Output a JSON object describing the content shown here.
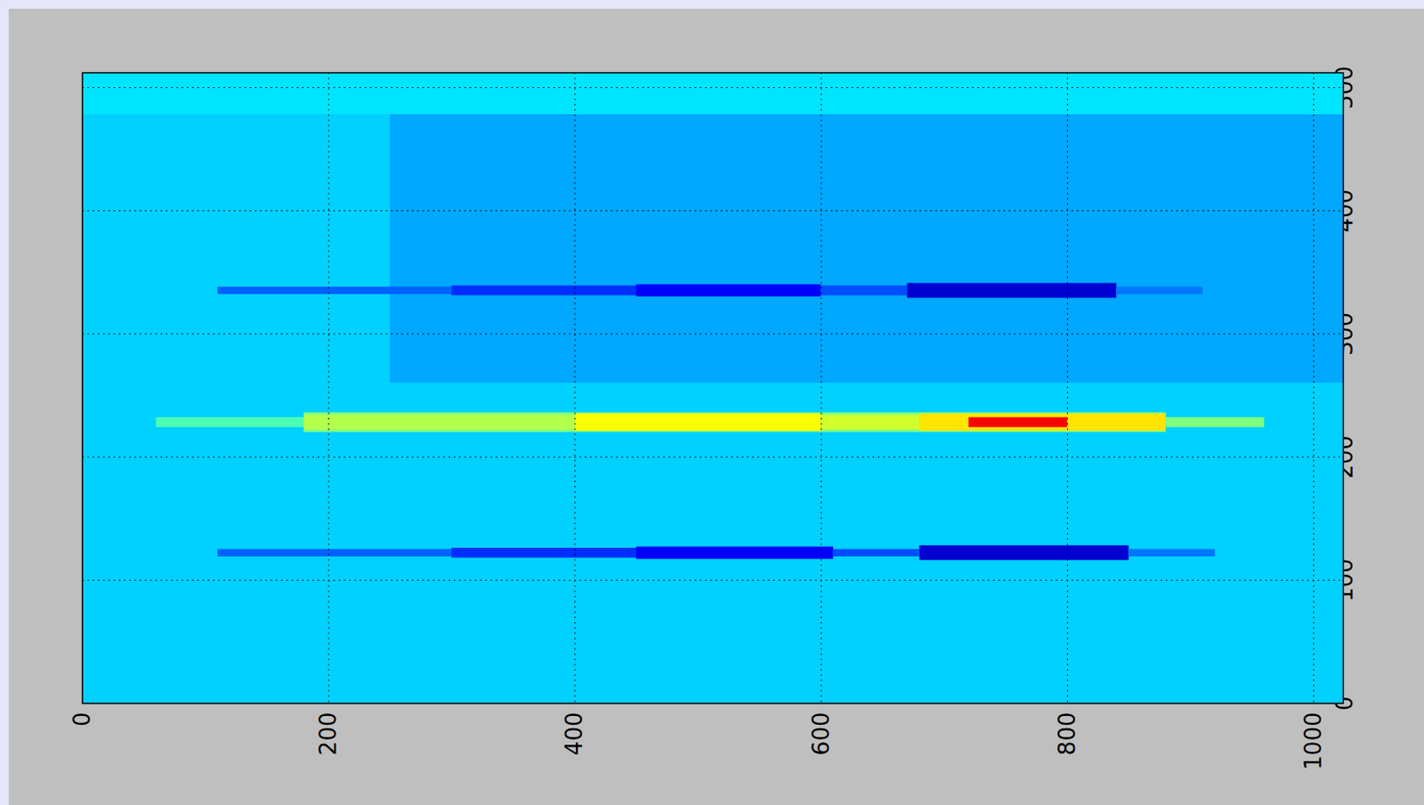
{
  "chart_data": {
    "type": "heatmap",
    "xlim": [
      0,
      1024
    ],
    "xticks": [
      0,
      200,
      400,
      600,
      800,
      1000
    ],
    "ylim": [
      0,
      512
    ],
    "yticks": [
      0,
      100,
      200,
      300,
      400,
      500
    ],
    "grid": true,
    "zlim": [
      0,
      1
    ],
    "cells": [
      [
        0,
        1024,
        0,
        512,
        0.33
      ],
      [
        250,
        1024,
        260,
        478,
        0.29
      ],
      [
        0,
        1024,
        478,
        512,
        0.35
      ],
      [
        110,
        300,
        332,
        338,
        0.22
      ],
      [
        300,
        450,
        331,
        339,
        0.17
      ],
      [
        450,
        600,
        330,
        340,
        0.12
      ],
      [
        600,
        670,
        331,
        339,
        0.2
      ],
      [
        670,
        840,
        329,
        341,
        0.08
      ],
      [
        840,
        910,
        332,
        338,
        0.24
      ],
      [
        110,
        300,
        119,
        125,
        0.22
      ],
      [
        300,
        450,
        118,
        126,
        0.17
      ],
      [
        450,
        610,
        117,
        127,
        0.12
      ],
      [
        610,
        680,
        119,
        125,
        0.2
      ],
      [
        680,
        850,
        116,
        128,
        0.08
      ],
      [
        850,
        920,
        119,
        125,
        0.24
      ],
      [
        60,
        180,
        224,
        232,
        0.45
      ],
      [
        180,
        880,
        220,
        236,
        0.5
      ],
      [
        180,
        400,
        222,
        234,
        0.55
      ],
      [
        400,
        600,
        221,
        235,
        0.62
      ],
      [
        600,
        680,
        222,
        234,
        0.58
      ],
      [
        680,
        880,
        221,
        235,
        0.65
      ],
      [
        720,
        800,
        224,
        232,
        0.88
      ],
      [
        880,
        960,
        224,
        232,
        0.5
      ]
    ]
  }
}
